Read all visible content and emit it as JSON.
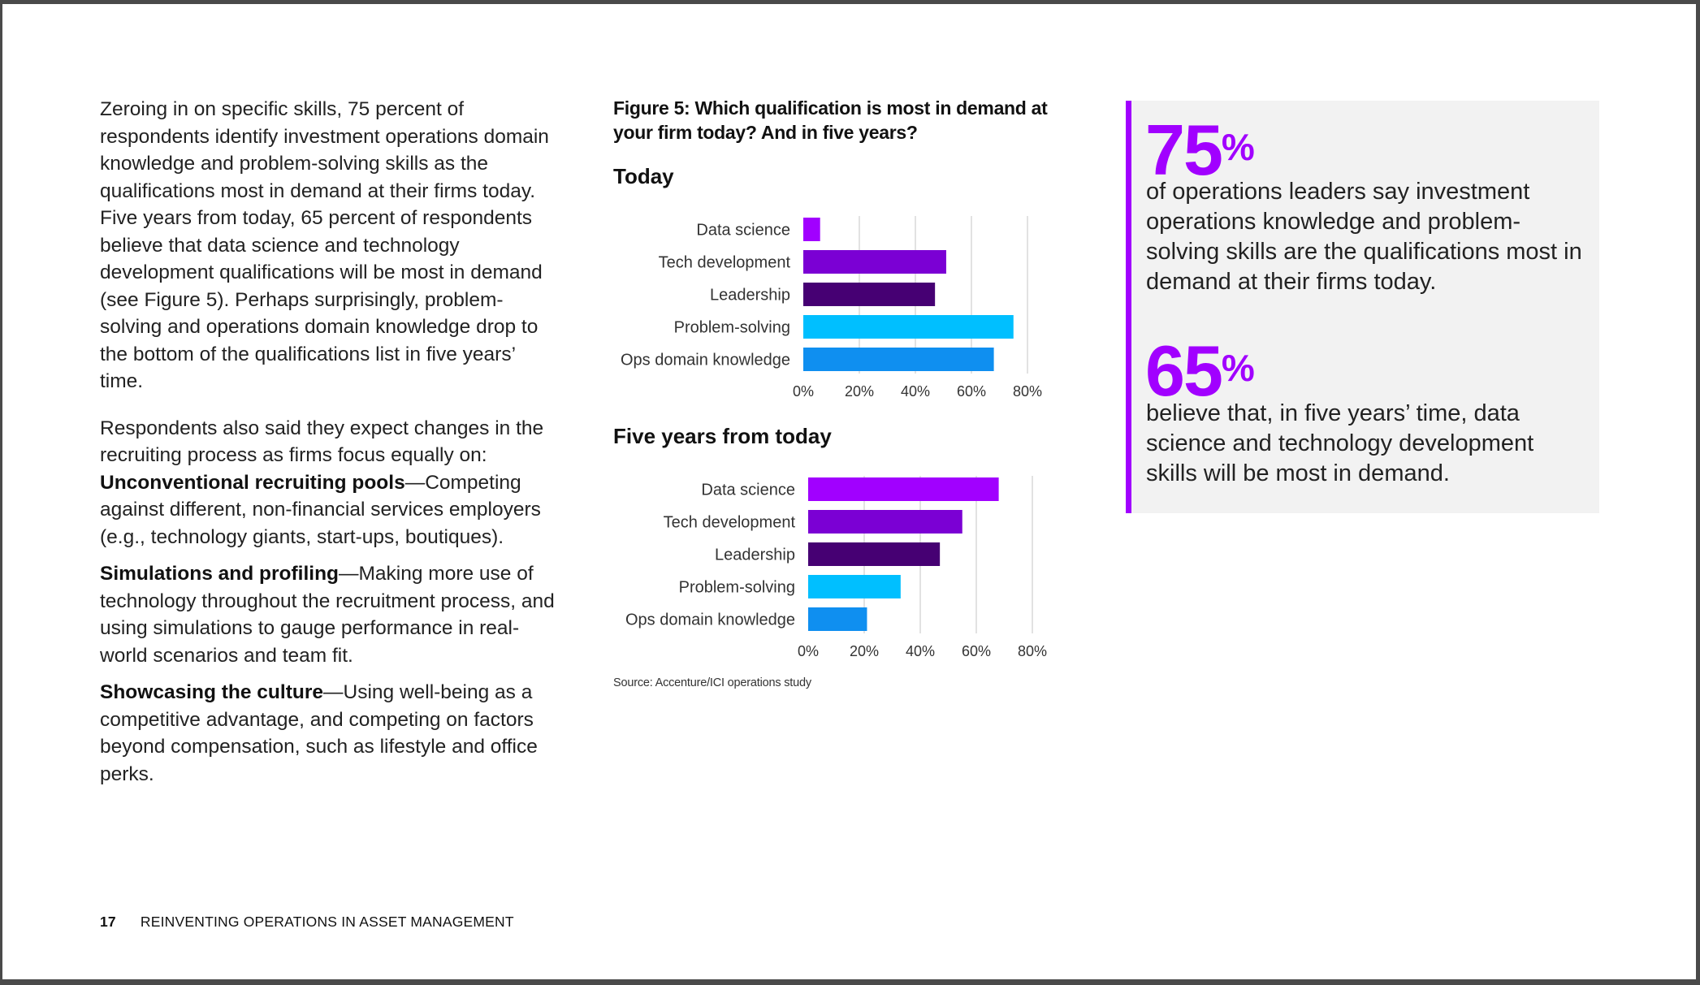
{
  "left": {
    "para1": "Zeroing in on specific skills, 75 percent of respondents identify investment operations domain knowledge and problem-solving skills as the qualifications most in demand at their firms today. Five years from today, 65 percent of respondents believe that data science and technology development qualifications will be most in demand (see Figure 5). Perhaps surprisingly, problem-solving and operations domain knowledge drop to the bottom of the qualifications list in five years’ time.",
    "para2": "Respondents also said they expect changes in the recruiting process as firms focus equally on:",
    "items": [
      {
        "title": "Unconventional recruiting pools",
        "text": "—Competing against different, non-financial services employers (e.g., technology giants, start-ups, boutiques)."
      },
      {
        "title": "Simulations and profiling",
        "text": "—Making more use of technology throughout the recruitment process, and using simulations to gauge performance in real-world scenarios and team fit."
      },
      {
        "title": "Showcasing the culture",
        "text": "—Using well-being as a competitive advantage, and competing on factors beyond compensation, such as lifestyle and office perks."
      }
    ]
  },
  "footer": {
    "page_number": "17",
    "title": "REINVENTING OPERATIONS IN ASSET MANAGEMENT"
  },
  "figure": {
    "title": "Figure 5: Which qualification is most in demand at your firm today? And in five years?",
    "source": "Source: Accenture/ICI operations study"
  },
  "colors": {
    "accent": "#a100ff",
    "bars": [
      "#a100ff",
      "#7b00d4",
      "#460073",
      "#00bfff",
      "#0f8ff0"
    ]
  },
  "chart_data": [
    {
      "type": "bar",
      "orientation": "horizontal",
      "title": "Today",
      "categories": [
        "Data science",
        "Tech development",
        "Leadership",
        "Problem-solving",
        "Ops domain knowledge"
      ],
      "values": [
        6,
        51,
        47,
        75,
        68
      ],
      "xlim": [
        0,
        80
      ],
      "xticks": [
        "0%",
        "20%",
        "40%",
        "60%",
        "80%"
      ],
      "grid": true
    },
    {
      "type": "bar",
      "orientation": "horizontal",
      "title": "Five years from today",
      "categories": [
        "Data science",
        "Tech development",
        "Leadership",
        "Problem-solving",
        "Ops domain knowledge"
      ],
      "values": [
        68,
        55,
        47,
        33,
        21
      ],
      "xlim": [
        0,
        80
      ],
      "xticks": [
        "0%",
        "20%",
        "40%",
        "60%",
        "80%"
      ],
      "grid": true
    }
  ],
  "stats": [
    {
      "number": "75",
      "unit": "%",
      "text": "of operations leaders say investment operations knowledge and problem-solving skills are the qualifications most in demand at their firms today."
    },
    {
      "number": "65",
      "unit": "%",
      "text": "believe that, in five years’ time, data science and technology development skills will be most in demand."
    }
  ]
}
